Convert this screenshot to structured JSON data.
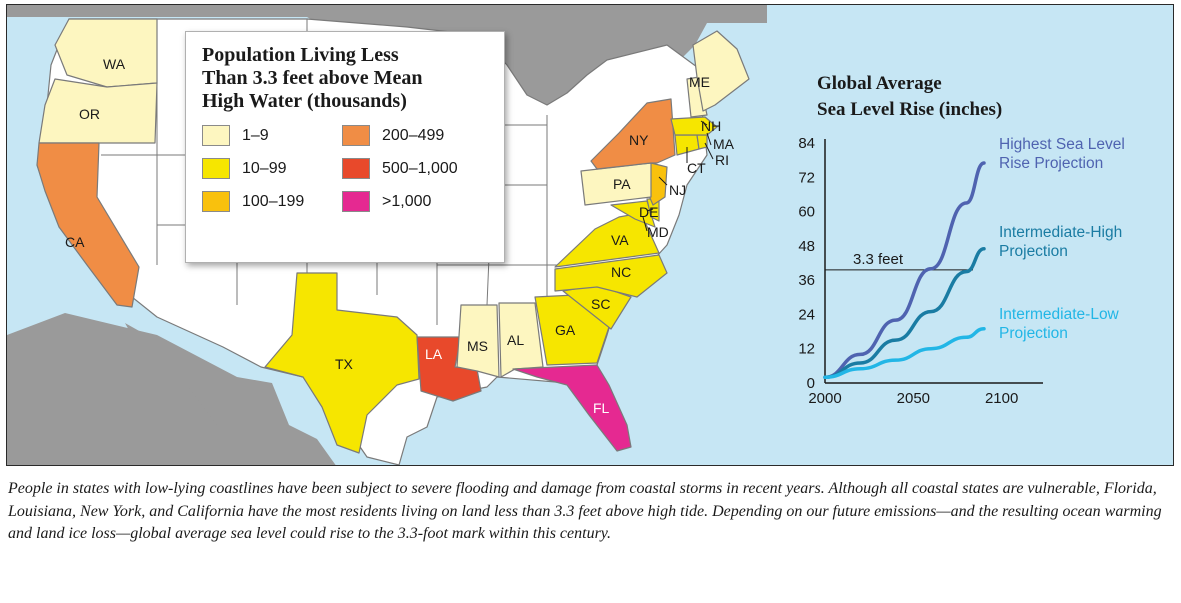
{
  "colors": {
    "water": "#c6e6f4",
    "land_other": "#9a9a9a",
    "state_default": "#ffffff",
    "bin_1_9": "#fdf6c0",
    "bin_10_99": "#f6e600",
    "bin_100_199": "#f9c10d",
    "bin_200_499": "#f08d45",
    "bin_500_1000": "#e8492b",
    "bin_over_1000": "#e52991"
  },
  "legend": {
    "title": "Population Living Less\nThan 3.3 feet above Mean\nHigh Water (thousands)",
    "items": [
      {
        "label": "1–9",
        "color": "#fdf6c0"
      },
      {
        "label": "200–499",
        "color": "#f08d45"
      },
      {
        "label": "10–99",
        "color": "#f6e600"
      },
      {
        "label": "500–1,000",
        "color": "#e8492b"
      },
      {
        "label": "100–199",
        "color": "#f9c10d"
      },
      {
        "label": ">1,000",
        "color": "#e52991"
      }
    ]
  },
  "states": {
    "WA": {
      "label": "WA",
      "bin": "1–9"
    },
    "OR": {
      "label": "OR",
      "bin": "1–9"
    },
    "CA": {
      "label": "CA",
      "bin": "200–499"
    },
    "TX": {
      "label": "TX",
      "bin": "10–99"
    },
    "LA": {
      "label": "LA",
      "bin": "500–1,000"
    },
    "MS": {
      "label": "MS",
      "bin": "1–9"
    },
    "AL": {
      "label": "AL",
      "bin": "1–9"
    },
    "GA": {
      "label": "GA",
      "bin": "10–99"
    },
    "FL": {
      "label": "FL",
      "bin": ">1,000"
    },
    "SC": {
      "label": "SC",
      "bin": "10–99"
    },
    "NC": {
      "label": "NC",
      "bin": "10–99"
    },
    "VA": {
      "label": "VA",
      "bin": "10–99"
    },
    "MD": {
      "label": "MD",
      "bin": "10–99"
    },
    "DE": {
      "label": "DE",
      "bin": "10–99"
    },
    "NJ": {
      "label": "NJ",
      "bin": "100–199"
    },
    "PA": {
      "label": "PA",
      "bin": "1–9"
    },
    "NY": {
      "label": "NY",
      "bin": "200–499"
    },
    "CT": {
      "label": "CT",
      "bin": "10–99"
    },
    "RI": {
      "label": "RI",
      "bin": "10–99"
    },
    "MA": {
      "label": "MA",
      "bin": "10–99"
    },
    "NH": {
      "label": "NH",
      "bin": "1–9"
    },
    "ME": {
      "label": "ME",
      "bin": "1–9"
    }
  },
  "chart_data": {
    "type": "line",
    "title": "Global Average\nSea Level Rise (inches)",
    "x_ticks": [
      "2000",
      "2050",
      "2100"
    ],
    "y_ticks": [
      "0",
      "12",
      "24",
      "36",
      "48",
      "60",
      "72",
      "84"
    ],
    "xlim": [
      2000,
      2120
    ],
    "ylim": [
      0,
      84
    ],
    "threshold": {
      "label": "3.3 feet",
      "value": 39.6
    },
    "series": [
      {
        "name": "Highest Sea Level\nRise Projection",
        "color": "#4f63b0",
        "x": [
          2000,
          2020,
          2040,
          2060,
          2080,
          2090
        ],
        "y": [
          2,
          10,
          22,
          40,
          63,
          77
        ]
      },
      {
        "name": "Intermediate-High\nProjection",
        "color": "#1a7ca3",
        "x": [
          2000,
          2020,
          2040,
          2060,
          2080,
          2090
        ],
        "y": [
          2,
          7,
          15,
          25,
          39,
          47
        ]
      },
      {
        "name": "Intermediate-Low\nProjection",
        "color": "#22b6e6",
        "x": [
          2000,
          2020,
          2040,
          2060,
          2080,
          2090
        ],
        "y": [
          2,
          5,
          8,
          12,
          16,
          19
        ]
      }
    ]
  },
  "caption": "People in states with low-lying coastlines have been subject to severe flooding and damage from coastal storms in recent years. Although all coastal states are vulnerable, Florida, Louisiana, New York, and California have the most residents living on land less than 3.3 feet above high tide. Depending on our future emissions—and the resulting ocean warming and land ice loss—global average sea level could rise to the 3.3-foot mark within this century."
}
